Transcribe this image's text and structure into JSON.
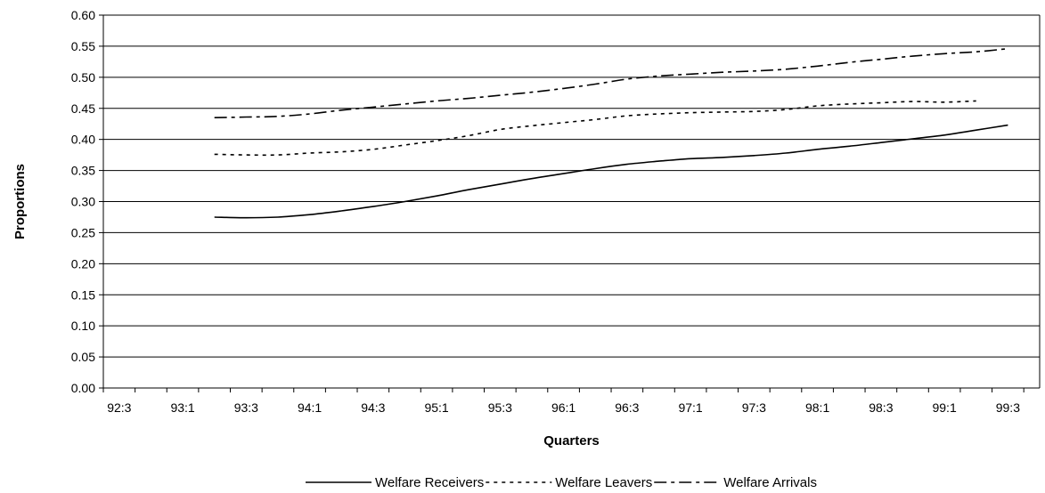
{
  "chart_data": {
    "type": "line",
    "title": "",
    "xlabel": "Quarters",
    "ylabel": "Proportions",
    "ylim": [
      0,
      0.6
    ],
    "y_ticks": [
      "0.00",
      "0.05",
      "0.10",
      "0.15",
      "0.20",
      "0.25",
      "0.30",
      "0.35",
      "0.40",
      "0.45",
      "0.50",
      "0.55",
      "0.60"
    ],
    "categories": [
      "92:3",
      "92:4",
      "93:1",
      "93:2",
      "93:3",
      "93:4",
      "94:1",
      "94:2",
      "94:3",
      "94:4",
      "95:1",
      "95:2",
      "95:3",
      "95:4",
      "96:1",
      "96:2",
      "96:3",
      "96:4",
      "97:1",
      "97:2",
      "97:3",
      "97:4",
      "98:1",
      "98:2",
      "98:3",
      "98:4",
      "99:1",
      "99:2",
      "99:3"
    ],
    "x_tick_labels": [
      "92:3",
      "93:1",
      "93:3",
      "94:1",
      "94:3",
      "95:1",
      "95:3",
      "96:1",
      "96:3",
      "97:1",
      "97:3",
      "98:1",
      "98:3",
      "99:1",
      "99:3"
    ],
    "grid": true,
    "legend_position": "bottom",
    "series": [
      {
        "name": "Welfare Receivers",
        "dash": "solid",
        "color": "#000000",
        "values": [
          null,
          null,
          null,
          0.275,
          0.274,
          0.275,
          0.279,
          0.285,
          0.292,
          0.3,
          0.309,
          0.319,
          0.328,
          0.337,
          0.345,
          0.353,
          0.36,
          0.365,
          0.369,
          0.371,
          0.374,
          0.378,
          0.384,
          0.389,
          0.395,
          0.401,
          0.407,
          0.415,
          0.423
        ]
      },
      {
        "name": "Welfare Leavers",
        "dash": "dotted",
        "color": "#000000",
        "values": [
          null,
          null,
          null,
          0.376,
          0.375,
          0.375,
          0.378,
          0.38,
          0.384,
          0.391,
          0.398,
          0.406,
          0.416,
          0.422,
          0.427,
          0.432,
          0.438,
          0.441,
          0.443,
          0.444,
          0.445,
          0.448,
          0.454,
          0.457,
          0.459,
          0.461,
          0.46,
          0.462,
          null
        ]
      },
      {
        "name": "Welfare Arrivals",
        "dash": "dash-dot",
        "color": "#000000",
        "values": [
          null,
          null,
          null,
          0.435,
          0.436,
          0.437,
          0.441,
          0.447,
          0.452,
          0.457,
          0.462,
          0.466,
          0.471,
          0.476,
          0.482,
          0.489,
          0.497,
          0.502,
          0.505,
          0.508,
          0.51,
          0.513,
          0.518,
          0.524,
          0.529,
          0.534,
          0.538,
          0.541,
          0.546
        ]
      }
    ]
  }
}
